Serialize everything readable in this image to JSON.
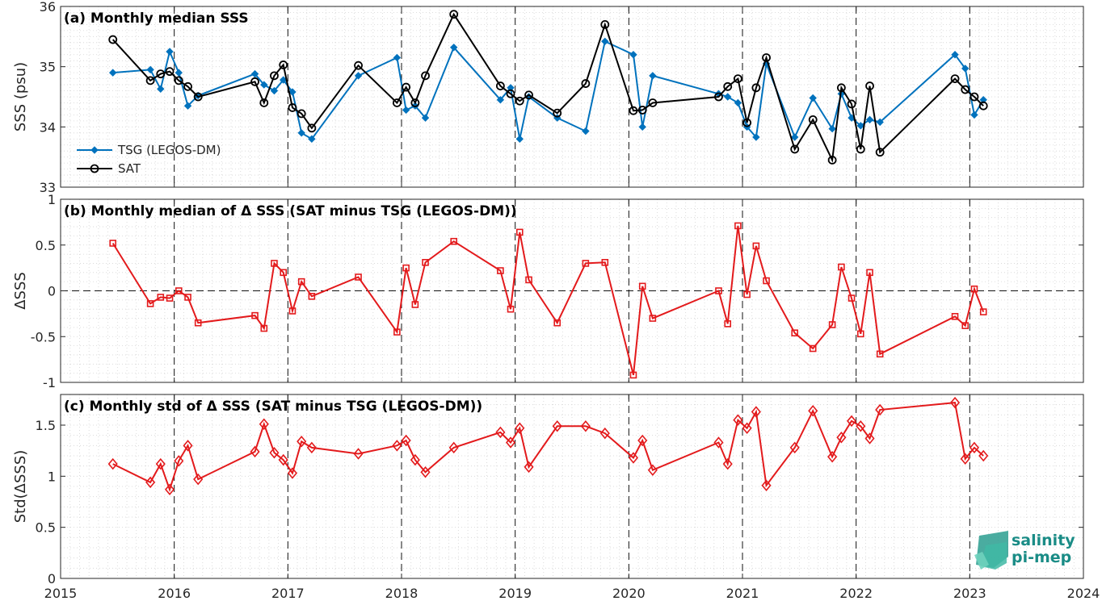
{
  "colors": {
    "tsg": "#0072bd",
    "sat": "#000000",
    "delta": "#e31a1c",
    "logo": "#1a8c86"
  },
  "logo": {
    "line1": "salinity",
    "line2": "pi-mep"
  },
  "chart_data": [
    {
      "type": "line",
      "title": "(a) Monthly median SSS",
      "ylabel": "SSS (psu)",
      "xlim": [
        2015,
        2024
      ],
      "ylim": [
        33,
        36
      ],
      "xticks": [
        "2015",
        "2016",
        "2017",
        "2018",
        "2019",
        "2020",
        "2021",
        "2022",
        "2023",
        "2024"
      ],
      "yticks": [
        "33",
        "34",
        "35",
        "36"
      ],
      "grid": true,
      "legend": "lower-left",
      "series": [
        {
          "name": "TSG (LEGOS-DM)",
          "marker": "diamond-filled",
          "color": "#0072bd",
          "points": [
            [
              2015.46,
              34.9
            ],
            [
              2015.79,
              34.95
            ],
            [
              2015.88,
              34.63
            ],
            [
              2015.96,
              35.25
            ],
            [
              2016.04,
              34.9
            ],
            [
              2016.12,
              34.35
            ],
            [
              2016.21,
              34.52
            ],
            [
              2016.71,
              34.88
            ],
            [
              2016.79,
              34.7
            ],
            [
              2016.88,
              34.6
            ],
            [
              2016.96,
              34.78
            ],
            [
              2017.04,
              34.58
            ],
            [
              2017.12,
              33.9
            ],
            [
              2017.21,
              33.8
            ],
            [
              2017.62,
              34.85
            ],
            [
              2017.96,
              35.15
            ],
            [
              2018.04,
              34.28
            ],
            [
              2018.12,
              34.35
            ],
            [
              2018.21,
              34.15
            ],
            [
              2018.46,
              35.32
            ],
            [
              2018.87,
              34.45
            ],
            [
              2018.96,
              34.65
            ],
            [
              2019.04,
              33.8
            ],
            [
              2019.12,
              34.5
            ],
            [
              2019.37,
              34.15
            ],
            [
              2019.62,
              33.93
            ],
            [
              2019.79,
              35.42
            ],
            [
              2020.04,
              35.2
            ],
            [
              2020.12,
              34.0
            ],
            [
              2020.21,
              34.85
            ],
            [
              2020.79,
              34.55
            ],
            [
              2020.87,
              34.5
            ],
            [
              2020.96,
              34.4
            ],
            [
              2021.04,
              34.0
            ],
            [
              2021.12,
              33.83
            ],
            [
              2021.21,
              35.05
            ],
            [
              2021.46,
              33.83
            ],
            [
              2021.62,
              34.48
            ],
            [
              2021.79,
              33.97
            ],
            [
              2021.87,
              34.55
            ],
            [
              2021.96,
              34.15
            ],
            [
              2022.04,
              34.02
            ],
            [
              2022.12,
              34.12
            ],
            [
              2022.21,
              34.08
            ],
            [
              2022.87,
              35.2
            ],
            [
              2022.96,
              34.97
            ],
            [
              2023.04,
              34.2
            ],
            [
              2023.12,
              34.45
            ]
          ]
        },
        {
          "name": "SAT",
          "marker": "circle-open",
          "color": "#000000",
          "points": [
            [
              2015.46,
              35.45
            ],
            [
              2015.79,
              34.77
            ],
            [
              2015.88,
              34.88
            ],
            [
              2015.96,
              34.92
            ],
            [
              2016.04,
              34.77
            ],
            [
              2016.12,
              34.67
            ],
            [
              2016.21,
              34.5
            ],
            [
              2016.71,
              34.75
            ],
            [
              2016.79,
              34.4
            ],
            [
              2016.88,
              34.85
            ],
            [
              2016.96,
              35.03
            ],
            [
              2017.04,
              34.32
            ],
            [
              2017.12,
              34.22
            ],
            [
              2017.21,
              33.98
            ],
            [
              2017.62,
              35.02
            ],
            [
              2017.96,
              34.4
            ],
            [
              2018.04,
              34.66
            ],
            [
              2018.12,
              34.4
            ],
            [
              2018.21,
              34.85
            ],
            [
              2018.46,
              35.87
            ],
            [
              2018.87,
              34.68
            ],
            [
              2018.96,
              34.55
            ],
            [
              2019.04,
              34.43
            ],
            [
              2019.12,
              34.53
            ],
            [
              2019.37,
              34.23
            ],
            [
              2019.62,
              34.72
            ],
            [
              2019.79,
              35.7
            ],
            [
              2020.04,
              34.27
            ],
            [
              2020.12,
              34.28
            ],
            [
              2020.21,
              34.4
            ],
            [
              2020.79,
              34.5
            ],
            [
              2020.87,
              34.67
            ],
            [
              2020.96,
              34.8
            ],
            [
              2021.04,
              34.07
            ],
            [
              2021.12,
              34.65
            ],
            [
              2021.21,
              35.15
            ],
            [
              2021.46,
              33.63
            ],
            [
              2021.62,
              34.12
            ],
            [
              2021.79,
              33.45
            ],
            [
              2021.87,
              34.65
            ],
            [
              2021.96,
              34.38
            ],
            [
              2022.04,
              33.63
            ],
            [
              2022.12,
              34.68
            ],
            [
              2022.21,
              33.58
            ],
            [
              2022.87,
              34.8
            ],
            [
              2022.96,
              34.62
            ],
            [
              2023.04,
              34.5
            ],
            [
              2023.12,
              34.35
            ]
          ]
        }
      ]
    },
    {
      "type": "line",
      "title": "(b) Monthly median of Δ SSS (SAT minus TSG (LEGOS-DM))",
      "ylabel": "ΔSSS",
      "xlim": [
        2015,
        2024
      ],
      "ylim": [
        -1,
        1
      ],
      "xticks": [
        "2015",
        "2016",
        "2017",
        "2018",
        "2019",
        "2020",
        "2021",
        "2022",
        "2023",
        "2024"
      ],
      "yticks": [
        "-1",
        "-0.5",
        "0",
        "0.5",
        "1"
      ],
      "grid": true,
      "series": [
        {
          "name": "",
          "marker": "square-open",
          "color": "#e31a1c",
          "points": [
            [
              2015.46,
              0.52
            ],
            [
              2015.79,
              -0.14
            ],
            [
              2015.88,
              -0.07
            ],
            [
              2015.96,
              -0.08
            ],
            [
              2016.04,
              0.0
            ],
            [
              2016.12,
              -0.07
            ],
            [
              2016.21,
              -0.35
            ],
            [
              2016.71,
              -0.27
            ],
            [
              2016.79,
              -0.41
            ],
            [
              2016.88,
              0.3
            ],
            [
              2016.96,
              0.2
            ],
            [
              2017.04,
              -0.22
            ],
            [
              2017.12,
              0.1
            ],
            [
              2017.21,
              -0.06
            ],
            [
              2017.62,
              0.15
            ],
            [
              2017.96,
              -0.45
            ],
            [
              2018.04,
              0.25
            ],
            [
              2018.12,
              -0.15
            ],
            [
              2018.21,
              0.31
            ],
            [
              2018.46,
              0.54
            ],
            [
              2018.87,
              0.22
            ],
            [
              2018.96,
              -0.2
            ],
            [
              2019.04,
              0.64
            ],
            [
              2019.12,
              0.12
            ],
            [
              2019.37,
              -0.35
            ],
            [
              2019.62,
              0.3
            ],
            [
              2019.79,
              0.31
            ],
            [
              2020.04,
              -0.92
            ],
            [
              2020.12,
              0.05
            ],
            [
              2020.21,
              -0.3
            ],
            [
              2020.79,
              0.0
            ],
            [
              2020.87,
              -0.36
            ],
            [
              2020.96,
              0.71
            ],
            [
              2021.04,
              -0.04
            ],
            [
              2021.12,
              0.49
            ],
            [
              2021.21,
              0.11
            ],
            [
              2021.46,
              -0.46
            ],
            [
              2021.62,
              -0.63
            ],
            [
              2021.79,
              -0.37
            ],
            [
              2021.87,
              0.26
            ],
            [
              2021.96,
              -0.08
            ],
            [
              2022.04,
              -0.47
            ],
            [
              2022.12,
              0.2
            ],
            [
              2022.21,
              -0.69
            ],
            [
              2022.87,
              -0.28
            ],
            [
              2022.96,
              -0.38
            ],
            [
              2023.04,
              0.02
            ],
            [
              2023.12,
              -0.23
            ]
          ]
        }
      ]
    },
    {
      "type": "line",
      "title": "(c) Monthly std of Δ SSS (SAT minus TSG (LEGOS-DM))",
      "ylabel": "Std(ΔSSS)",
      "xlim": [
        2015,
        2024
      ],
      "ylim": [
        0,
        1.8
      ],
      "xticks": [
        "2015",
        "2016",
        "2017",
        "2018",
        "2019",
        "2020",
        "2021",
        "2022",
        "2023",
        "2024"
      ],
      "yticks": [
        "0",
        "0.5",
        "1",
        "1.5"
      ],
      "grid": true,
      "series": [
        {
          "name": "",
          "marker": "diamond-open",
          "color": "#e31a1c",
          "points": [
            [
              2015.46,
              1.12
            ],
            [
              2015.79,
              0.94
            ],
            [
              2015.88,
              1.12
            ],
            [
              2015.96,
              0.87
            ],
            [
              2016.04,
              1.15
            ],
            [
              2016.12,
              1.3
            ],
            [
              2016.21,
              0.97
            ],
            [
              2016.71,
              1.24
            ],
            [
              2016.79,
              1.51
            ],
            [
              2016.88,
              1.23
            ],
            [
              2016.96,
              1.16
            ],
            [
              2017.04,
              1.03
            ],
            [
              2017.12,
              1.34
            ],
            [
              2017.21,
              1.28
            ],
            [
              2017.62,
              1.22
            ],
            [
              2017.96,
              1.3
            ],
            [
              2018.04,
              1.35
            ],
            [
              2018.12,
              1.16
            ],
            [
              2018.21,
              1.04
            ],
            [
              2018.46,
              1.28
            ],
            [
              2018.87,
              1.43
            ],
            [
              2018.96,
              1.33
            ],
            [
              2019.04,
              1.47
            ],
            [
              2019.12,
              1.09
            ],
            [
              2019.37,
              1.49
            ],
            [
              2019.62,
              1.49
            ],
            [
              2019.79,
              1.42
            ],
            [
              2020.04,
              1.18
            ],
            [
              2020.12,
              1.35
            ],
            [
              2020.21,
              1.06
            ],
            [
              2020.79,
              1.33
            ],
            [
              2020.87,
              1.12
            ],
            [
              2020.96,
              1.55
            ],
            [
              2021.04,
              1.47
            ],
            [
              2021.12,
              1.63
            ],
            [
              2021.21,
              0.91
            ],
            [
              2021.46,
              1.28
            ],
            [
              2021.62,
              1.64
            ],
            [
              2021.79,
              1.19
            ],
            [
              2021.87,
              1.38
            ],
            [
              2021.96,
              1.54
            ],
            [
              2022.04,
              1.49
            ],
            [
              2022.12,
              1.37
            ],
            [
              2022.21,
              1.65
            ],
            [
              2022.87,
              1.72
            ],
            [
              2022.96,
              1.17
            ],
            [
              2023.04,
              1.28
            ],
            [
              2023.12,
              1.2
            ]
          ]
        }
      ]
    }
  ]
}
